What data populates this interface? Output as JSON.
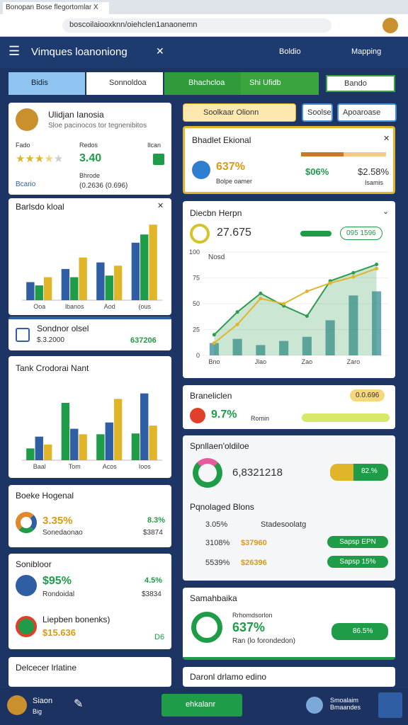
{
  "browser": {
    "tab": "Bonopan Bose flegortomlar X",
    "url": "boscoilaiooxknn/oiehclen1anaonemn"
  },
  "header": {
    "title": "Vimques loanoniong",
    "nav": [
      "Boldio",
      "Mapping"
    ]
  },
  "tabs": [
    "Bidis",
    "Sonnoldoa",
    "Bhachcloa",
    "Shi Ufidb"
  ],
  "tab_dropdown": "Bando",
  "profile": {
    "name": "Ulidjan Ianosia",
    "subtitle": "Sloe pacinocos tor tegnenibitos",
    "labels": [
      "Fado",
      "Redos",
      "Ilcan"
    ],
    "rating": 3.5,
    "score": "3.40",
    "extra": "Bhrode",
    "detail": "(0.2636 (0.696)",
    "link": "Bcario"
  },
  "chart_a": {
    "type": "bar",
    "title": "Barlsdo kloal",
    "categories": [
      "Ooa",
      "lbanos",
      "Aod",
      "(ous"
    ],
    "ylim": [
      0,
      100
    ],
    "series": [
      {
        "color": "#2f5ea5",
        "values": [
          22,
          38,
          46,
          70
        ]
      },
      {
        "color": "#1f9c48",
        "values": [
          18,
          28,
          30,
          80
        ]
      },
      {
        "color": "#e0b52a",
        "values": [
          28,
          52,
          42,
          92
        ]
      }
    ]
  },
  "summary": {
    "title": "Sondnor olsel",
    "left": "$.3.2000",
    "right": "637206"
  },
  "chart_b": {
    "type": "bar",
    "title": "Tank Crodorai Nant",
    "categories": [
      "Baal",
      "Tom",
      "Acos",
      "Ioos"
    ],
    "ylim": [
      0,
      100
    ],
    "series": [
      {
        "color": "#1f9c48",
        "values": [
          15,
          73,
          33,
          34
        ]
      },
      {
        "color": "#2f5ea5",
        "values": [
          30,
          40,
          48,
          85
        ]
      },
      {
        "color": "#e0b52a",
        "values": [
          20,
          33,
          78,
          44
        ]
      }
    ]
  },
  "card_d": {
    "title": "Boeke Hogenal",
    "value": "3.35%",
    "label": "Sonedaonao",
    "right": "8.3%",
    "right_sub": "$3874"
  },
  "card_e": {
    "title": "Sonibloor",
    "value": "$95%",
    "label": "Rondoidal",
    "right": "4.5%",
    "right_sub": "$3834",
    "item": "Liepben bonenks)",
    "item_value": "$15.636",
    "item_right": "D6"
  },
  "card_f": {
    "title": "Delcecer lrlatine"
  },
  "filters": {
    "dropdown": "Soolkaar Olionn",
    "buttons": [
      "Soolse",
      "Apoaroase"
    ]
  },
  "highlight": {
    "title": "Bhadlet Ekional",
    "value": "637%",
    "sub": "Bolpe oamer",
    "mid": "$06%",
    "right": "$2.58%",
    "right_sub": "Isamis"
  },
  "chart_c": {
    "type": "line",
    "title": "Diecbn Herpn",
    "stat": "27.675",
    "pill": "095 1596",
    "categories": [
      "Bno",
      null,
      "Jlao",
      null,
      "Zao",
      null,
      "Zaro",
      null
    ],
    "ylim": [
      0,
      100
    ],
    "yticks": [
      0,
      25,
      50,
      75,
      100
    ],
    "series": [
      {
        "name": "Nosd",
        "color": "#2e9b4e",
        "values": [
          20,
          42,
          60,
          48,
          38,
          72,
          80,
          88
        ]
      },
      {
        "color": "#e0b52a",
        "values": [
          12,
          30,
          55,
          50,
          62,
          70,
          76,
          84
        ]
      }
    ],
    "bars": {
      "color": "#3a8a9a",
      "values": [
        12,
        16,
        10,
        14,
        18,
        34,
        58,
        62
      ]
    }
  },
  "progress": {
    "title": "Braneliclen",
    "value": "9.7%",
    "label": "Romin",
    "pill": "0.0.696"
  },
  "donut_card": {
    "title": "Spnllaen'oldiloe",
    "value": "6,8321218",
    "pill": "82.%",
    "subtitle": "Pqnolaged Blons",
    "rows": [
      [
        "3.05%",
        "Stadesoolatg"
      ],
      [
        "3108%",
        "$37960",
        "Sapsp EPN"
      ],
      [
        "5539%",
        "$26396",
        "Sapsp 15%"
      ]
    ]
  },
  "card_g": {
    "title": "Samahbaika",
    "label": "Rrhomdsorlon",
    "value": "637%",
    "sub": "Ran (lo forondedon)",
    "pill": "86.5%"
  },
  "card_h": {
    "title": "Daronl drlamo edino"
  },
  "footer": {
    "user": "Siaon",
    "sub": "Big",
    "button": "ehkalanr",
    "user2": "Smoalaim Bmaandes"
  }
}
